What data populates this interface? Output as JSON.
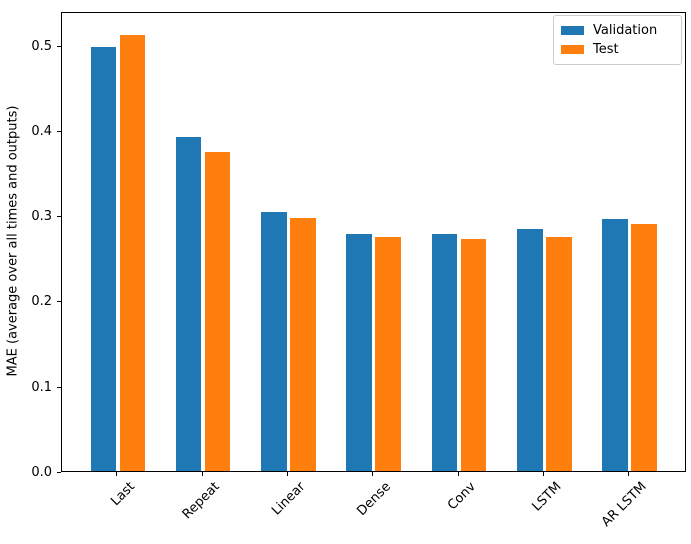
{
  "figure": {
    "background": "#ffffff",
    "text_color": "#000000"
  },
  "chart_data": {
    "type": "bar",
    "title": "",
    "xlabel": "",
    "ylabel": "MAE (average over all times and outputs)",
    "categories": [
      "Last",
      "Repeat",
      "Linear",
      "Dense",
      "Conv",
      "LSTM",
      "AR LSTM"
    ],
    "series": [
      {
        "name": "Validation",
        "color": "#1f77b4",
        "values": [
          0.501,
          0.395,
          0.306,
          0.28,
          0.28,
          0.286,
          0.298
        ]
      },
      {
        "name": "Test",
        "color": "#ff7f0e",
        "values": [
          0.515,
          0.377,
          0.299,
          0.277,
          0.274,
          0.277,
          0.292
        ]
      }
    ],
    "yticks": {
      "values": [
        0.0,
        0.1,
        0.2,
        0.3,
        0.4,
        0.5
      ],
      "labels": [
        "0.0",
        "0.1",
        "0.2",
        "0.3",
        "0.4",
        "0.5"
      ]
    },
    "ylim": [
      0,
      0.541
    ],
    "xtick_rotation": 45,
    "grid": false,
    "legend_position": "upper right"
  }
}
